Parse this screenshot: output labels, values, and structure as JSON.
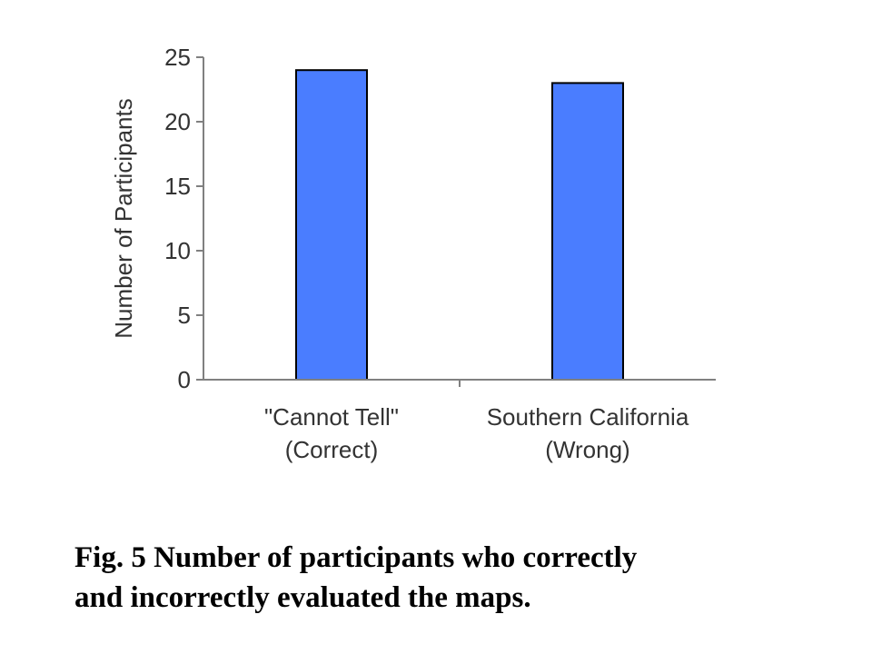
{
  "chart_data": {
    "type": "bar",
    "categories": [
      [
        "\"Cannot Tell\"",
        "(Correct)"
      ],
      [
        "Southern California",
        "(Wrong)"
      ]
    ],
    "values": [
      24,
      23
    ],
    "ylabel": "Number of Participants",
    "xlabel": "",
    "ylim": [
      0,
      25
    ],
    "yticks": [
      0,
      5,
      10,
      15,
      20,
      25
    ],
    "grid": false,
    "bar_color": "#4a7dff",
    "bar_stroke": "#000000"
  },
  "caption": {
    "lines": [
      "Fig. 5 Number of participants who correctly",
      "and incorrectly evaluated the maps."
    ]
  }
}
